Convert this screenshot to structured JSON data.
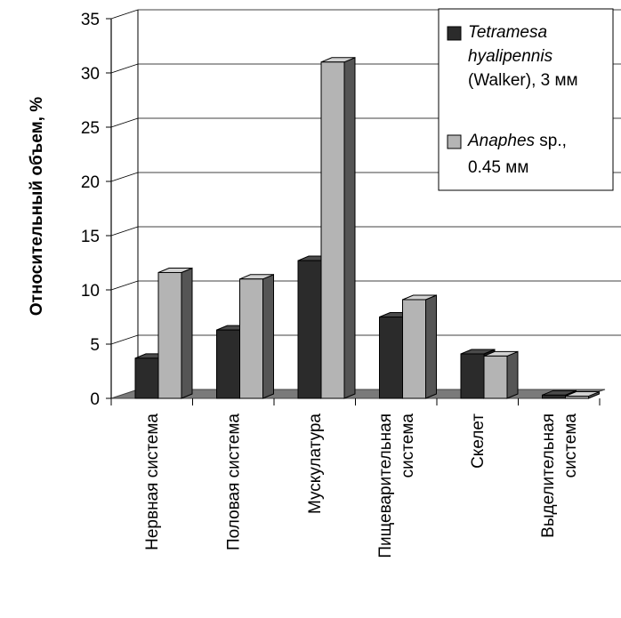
{
  "chart_data": {
    "type": "bar",
    "ylabel": "Относительный объем, %",
    "xlabel": "",
    "title": "",
    "ylim": [
      0,
      35
    ],
    "yticks": [
      0,
      5,
      10,
      15,
      20,
      25,
      30,
      35
    ],
    "grid": true,
    "legend_position": "top-right",
    "categories": [
      [
        "Нервная система"
      ],
      [
        "Половая система"
      ],
      [
        "Мускулатура"
      ],
      [
        "Пищеварительная",
        "система"
      ],
      [
        "Скелет"
      ],
      [
        "Выделительная",
        "система"
      ]
    ],
    "series": [
      {
        "name": "Tetramesa hyalipennis (Walker), 3 мм",
        "legend_lines": [
          [
            "Tetramesa",
            ""
          ],
          [
            "hyalipennis",
            ""
          ],
          [
            "",
            "(Walker), 3 мм"
          ]
        ],
        "color": "#2b2b2b",
        "values": [
          3.7,
          6.3,
          12.7,
          7.5,
          4.1,
          0.3
        ]
      },
      {
        "name": "Anaphes sp., 0.45 мм",
        "legend_lines": [
          [
            "Anaphes",
            " sp.,"
          ],
          [
            "",
            "0.45 мм"
          ]
        ],
        "color": "#b4b4b4",
        "values": [
          11.6,
          11.0,
          31.0,
          9.1,
          3.9,
          0.2
        ]
      }
    ]
  }
}
